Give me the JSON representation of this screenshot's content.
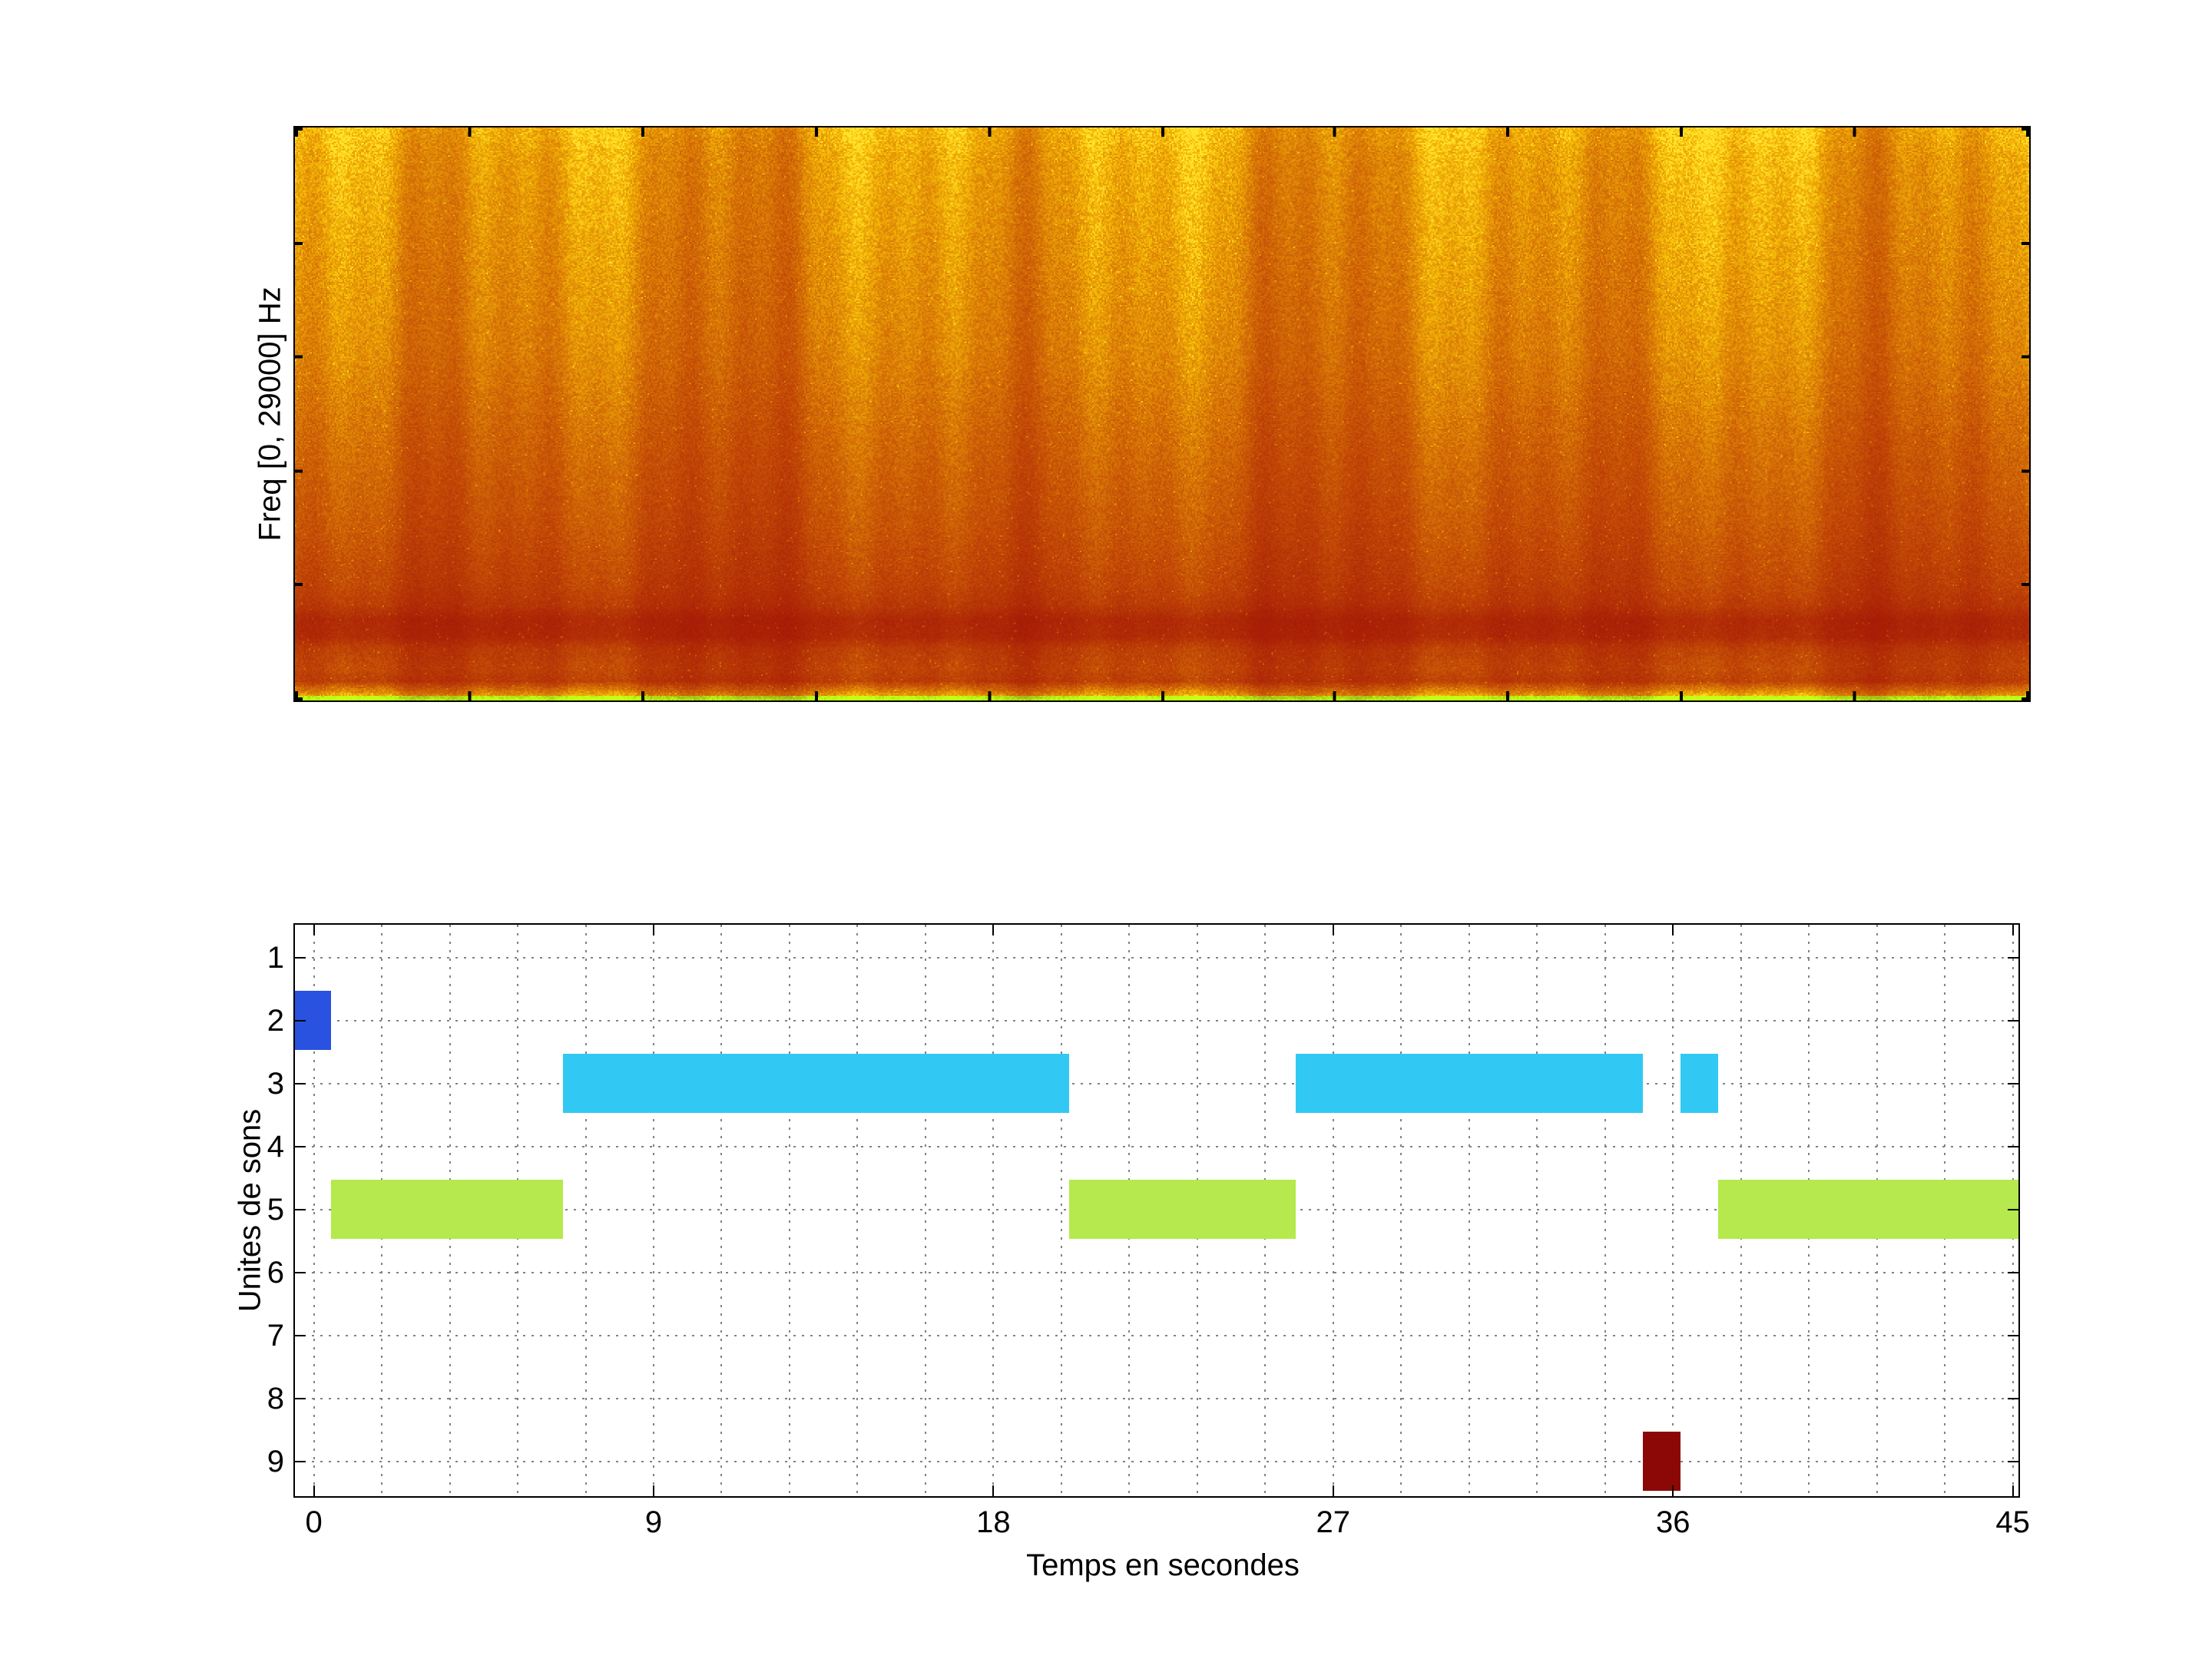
{
  "figure": {
    "background": "#ffffff"
  },
  "chart_data": [
    {
      "id": "spectrogram",
      "type": "heatmap",
      "title": "",
      "xlabel": "",
      "ylabel": "Freq [0, 29000] Hz",
      "time_range_seconds": [
        0,
        45
      ],
      "freq_range_hz": [
        0,
        29000
      ],
      "colormap": "jet (warm: dark red - red - orange - yellow)",
      "description": "Broadband noise spectrogram: mottled yellow-orange at high frequencies, deepening to orange then red at lower frequencies, a dark red horizontal band near the bottom, a thin brighter orange band below it, and a thin bright yellow-green line at the lowest frequencies; irregular vertical streaks over time."
    },
    {
      "id": "sound-units",
      "type": "gantt",
      "title": "",
      "xlabel": "Temps en secondes",
      "ylabel": "Unites de sons",
      "xticks": [
        0,
        9,
        18,
        27,
        36,
        45
      ],
      "yticks": [
        1,
        2,
        3,
        4,
        5,
        6,
        7,
        8,
        9
      ],
      "xlim": [
        -0.5,
        45.15
      ],
      "ylim": [
        0.48,
        9.55
      ],
      "y_axis_reversed": true,
      "minor_x_step": 1.8,
      "grid": "dotted",
      "colors": {
        "blue": "#2a52e0",
        "cyan": "#31c9f4",
        "green": "#b5e94d",
        "darkred": "#8b0806"
      },
      "segments": [
        {
          "unit": 2,
          "start": -0.5,
          "end": 0.45,
          "color": "blue"
        },
        {
          "unit": 5,
          "start": 0.45,
          "end": 6.6,
          "color": "green"
        },
        {
          "unit": 3,
          "start": 6.6,
          "end": 20.0,
          "color": "cyan"
        },
        {
          "unit": 5,
          "start": 20.0,
          "end": 26.0,
          "color": "green"
        },
        {
          "unit": 3,
          "start": 26.0,
          "end": 35.2,
          "color": "cyan"
        },
        {
          "unit": 9,
          "start": 35.2,
          "end": 36.2,
          "color": "darkred"
        },
        {
          "unit": 3,
          "start": 36.2,
          "end": 37.2,
          "color": "cyan"
        },
        {
          "unit": 5,
          "start": 37.2,
          "end": 45.15,
          "color": "green"
        }
      ]
    }
  ]
}
